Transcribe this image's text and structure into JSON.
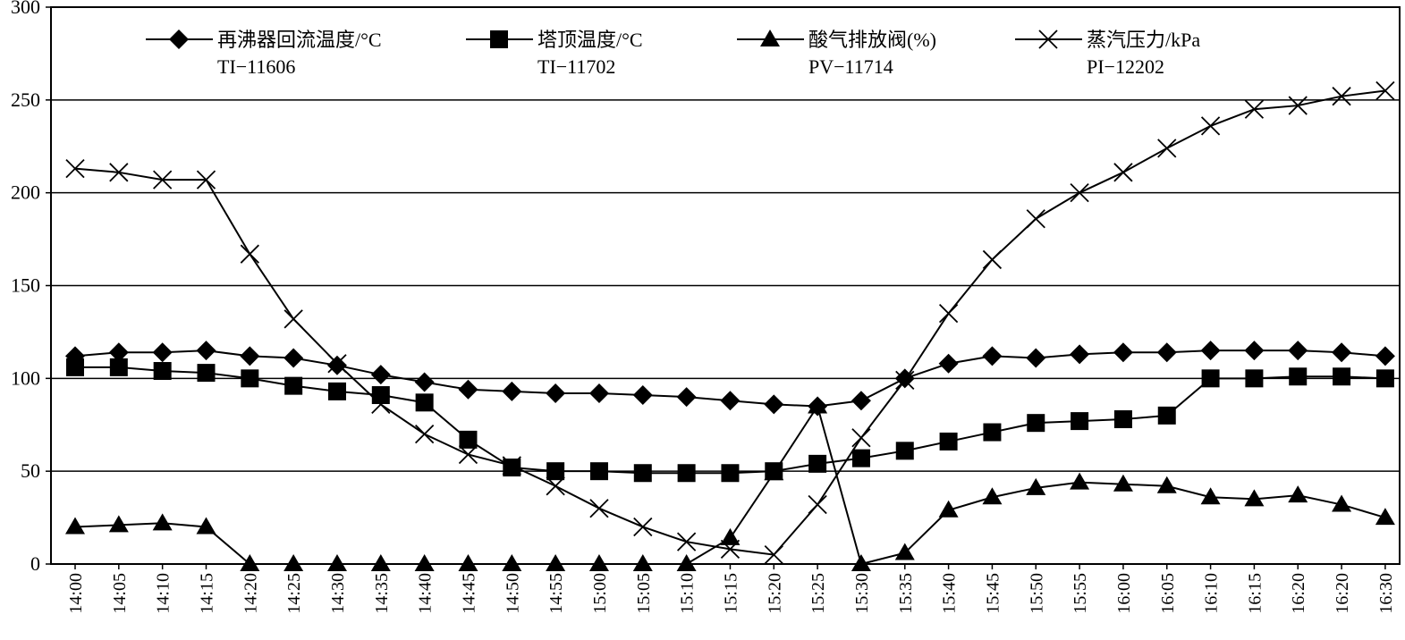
{
  "chart_data": {
    "type": "line",
    "title": "",
    "xlabel": "",
    "ylabel": "",
    "ylim": [
      0,
      300
    ],
    "yticks": [
      0,
      50,
      100,
      150,
      200,
      250,
      300
    ],
    "grid": "horizontal",
    "legend_position": "top",
    "categories": [
      "14:00",
      "14:05",
      "14:10",
      "14:15",
      "14:20",
      "14:25",
      "14:30",
      "14:35",
      "14:40",
      "14:45",
      "14:50",
      "14:55",
      "15:00",
      "15:05",
      "15:10",
      "15:15",
      "15:20",
      "15:25",
      "15:30",
      "15:35",
      "15:40",
      "15:45",
      "15:50",
      "15:55",
      "16:00",
      "16:05",
      "16:10",
      "16:15",
      "16:20",
      "16:20",
      "16:30"
    ],
    "series": [
      {
        "name": "再沸器回流温度/°C",
        "tag": "TI−11606",
        "marker": "diamond",
        "values": [
          112,
          114,
          114,
          115,
          112,
          111,
          107,
          102,
          98,
          94,
          93,
          92,
          92,
          91,
          90,
          88,
          86,
          85,
          88,
          100,
          108,
          112,
          111,
          113,
          114,
          114,
          115,
          115,
          115,
          114,
          112
        ]
      },
      {
        "name": "塔顶温度/°C",
        "tag": "TI−11702",
        "marker": "square",
        "values": [
          106,
          106,
          104,
          103,
          100,
          96,
          93,
          91,
          87,
          67,
          52,
          50,
          50,
          49,
          49,
          49,
          50,
          54,
          57,
          61,
          66,
          71,
          76,
          77,
          78,
          80,
          100,
          100,
          101,
          101,
          100
        ]
      },
      {
        "name": "酸气排放阀(%)",
        "tag": "PV−11714",
        "marker": "triangle",
        "values": [
          20,
          21,
          22,
          20,
          0,
          0,
          0,
          0,
          0,
          0,
          0,
          0,
          0,
          0,
          0,
          14,
          49,
          85,
          0,
          6,
          29,
          36,
          41,
          44,
          43,
          42,
          36,
          35,
          37,
          32,
          25
        ]
      },
      {
        "name": "蒸汽压力/kPa",
        "tag": "PI−12202",
        "marker": "cross",
        "values": [
          213,
          211,
          207,
          207,
          167,
          132,
          108,
          86,
          70,
          59,
          53,
          42,
          30,
          20,
          12,
          8,
          5,
          32,
          68,
          99,
          135,
          164,
          186,
          200,
          211,
          224,
          236,
          245,
          247,
          252,
          255
        ]
      }
    ]
  }
}
